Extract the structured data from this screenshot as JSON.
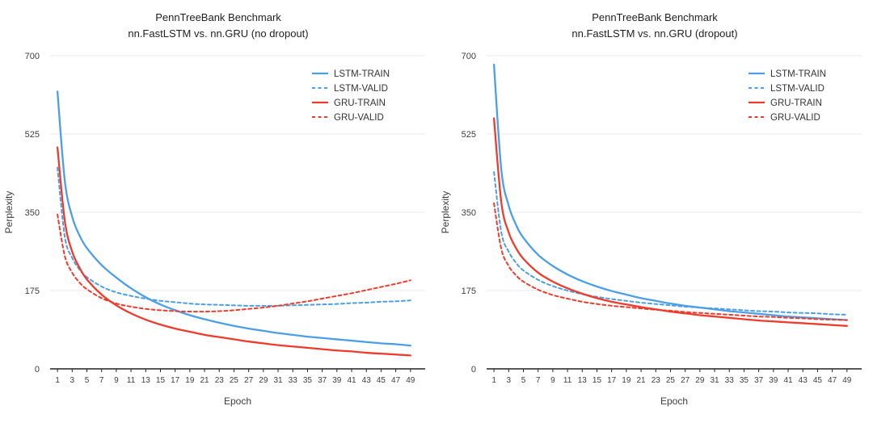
{
  "chart_data": [
    {
      "type": "line",
      "title": "PennTreeBank Benchmark",
      "subtitle": "nn.FastLSTM vs. nn.GRU (no dropout)",
      "xlabel": "Epoch",
      "ylabel": "Perplexity",
      "xlim": [
        0,
        51
      ],
      "ylim": [
        0,
        700
      ],
      "yticks": [
        0,
        175,
        350,
        525,
        700
      ],
      "xticks": [
        1,
        3,
        5,
        7,
        9,
        11,
        13,
        15,
        17,
        19,
        21,
        23,
        25,
        27,
        29,
        31,
        33,
        35,
        37,
        39,
        41,
        43,
        45,
        47,
        49
      ],
      "grid": "horizontal",
      "legend_position": "top-right",
      "x": [
        1,
        2,
        3,
        4,
        5,
        7,
        9,
        11,
        13,
        15,
        17,
        19,
        21,
        23,
        25,
        27,
        29,
        31,
        33,
        35,
        37,
        39,
        41,
        43,
        45,
        47,
        49
      ],
      "series": [
        {
          "name": "LSTM-TRAIN",
          "color": "#4C9FE6",
          "dash": false,
          "values": [
            620,
            420,
            340,
            298,
            270,
            232,
            204,
            180,
            160,
            144,
            131,
            120,
            111,
            103,
            96,
            90,
            85,
            80,
            76,
            72,
            69,
            66,
            63,
            60,
            57,
            55,
            52
          ]
        },
        {
          "name": "LSTM-VALID",
          "color": "#4C9FE6",
          "dash": true,
          "values": [
            450,
            295,
            248,
            222,
            205,
            184,
            171,
            163,
            157,
            152,
            149,
            146,
            144,
            143,
            142,
            141,
            141,
            141,
            142,
            143,
            144,
            145,
            147,
            148,
            150,
            151,
            153
          ]
        },
        {
          "name": "GRU-TRAIN",
          "color": "#EF3B2C",
          "dash": false,
          "values": [
            495,
            330,
            262,
            226,
            200,
            166,
            142,
            124,
            110,
            99,
            90,
            83,
            76,
            71,
            66,
            61,
            57,
            53,
            50,
            47,
            44,
            41,
            39,
            36,
            34,
            32,
            30
          ]
        },
        {
          "name": "GRU-VALID",
          "color": "#EF3B2C",
          "dash": true,
          "values": [
            345,
            252,
            215,
            193,
            178,
            158,
            146,
            139,
            134,
            131,
            129,
            128,
            128,
            129,
            131,
            134,
            137,
            141,
            146,
            151,
            157,
            163,
            169,
            176,
            183,
            190,
            198
          ]
        }
      ]
    },
    {
      "type": "line",
      "title": "PennTreeBank Benchmark",
      "subtitle": "nn.FastLSTM vs. nn.GRU (dropout)",
      "xlabel": "Epoch",
      "ylabel": "Perplexity",
      "xlim": [
        0,
        51
      ],
      "ylim": [
        0,
        700
      ],
      "yticks": [
        0,
        175,
        350,
        525,
        700
      ],
      "xticks": [
        1,
        3,
        5,
        7,
        9,
        11,
        13,
        15,
        17,
        19,
        21,
        23,
        25,
        27,
        29,
        31,
        33,
        35,
        37,
        39,
        41,
        43,
        45,
        47,
        49
      ],
      "grid": "horizontal",
      "legend_position": "top-right",
      "x": [
        1,
        2,
        3,
        4,
        5,
        7,
        9,
        11,
        13,
        15,
        17,
        19,
        21,
        23,
        25,
        27,
        29,
        31,
        33,
        35,
        37,
        39,
        41,
        43,
        45,
        47,
        49
      ],
      "series": [
        {
          "name": "LSTM-TRAIN",
          "color": "#4C9FE6",
          "dash": false,
          "values": [
            680,
            445,
            365,
            322,
            293,
            255,
            230,
            211,
            196,
            184,
            174,
            166,
            158,
            152,
            146,
            141,
            137,
            133,
            129,
            126,
            123,
            120,
            117,
            115,
            113,
            111,
            109
          ]
        },
        {
          "name": "LSTM-VALID",
          "color": "#4C9FE6",
          "dash": true,
          "values": [
            440,
            305,
            262,
            237,
            220,
            199,
            185,
            175,
            167,
            161,
            156,
            152,
            148,
            145,
            142,
            139,
            137,
            135,
            133,
            131,
            129,
            128,
            126,
            125,
            124,
            122,
            121
          ]
        },
        {
          "name": "GRU-TRAIN",
          "color": "#EF3B2C",
          "dash": false,
          "values": [
            560,
            372,
            305,
            270,
            246,
            215,
            195,
            180,
            168,
            158,
            150,
            144,
            138,
            133,
            128,
            124,
            120,
            117,
            114,
            111,
            108,
            106,
            104,
            102,
            100,
            98,
            96
          ]
        },
        {
          "name": "GRU-VALID",
          "color": "#EF3B2C",
          "dash": true,
          "values": [
            370,
            268,
            230,
            209,
            195,
            177,
            165,
            157,
            150,
            145,
            141,
            138,
            135,
            132,
            130,
            127,
            125,
            123,
            121,
            119,
            117,
            116,
            114,
            113,
            111,
            110,
            109
          ]
        }
      ]
    }
  ],
  "style": {
    "grid_color": "#e9e9e9",
    "axis_color": "#212121",
    "tick_text_color": "#3d3d3d",
    "axis_label_color": "#3d3d3d",
    "legend_text_color": "#333333"
  }
}
